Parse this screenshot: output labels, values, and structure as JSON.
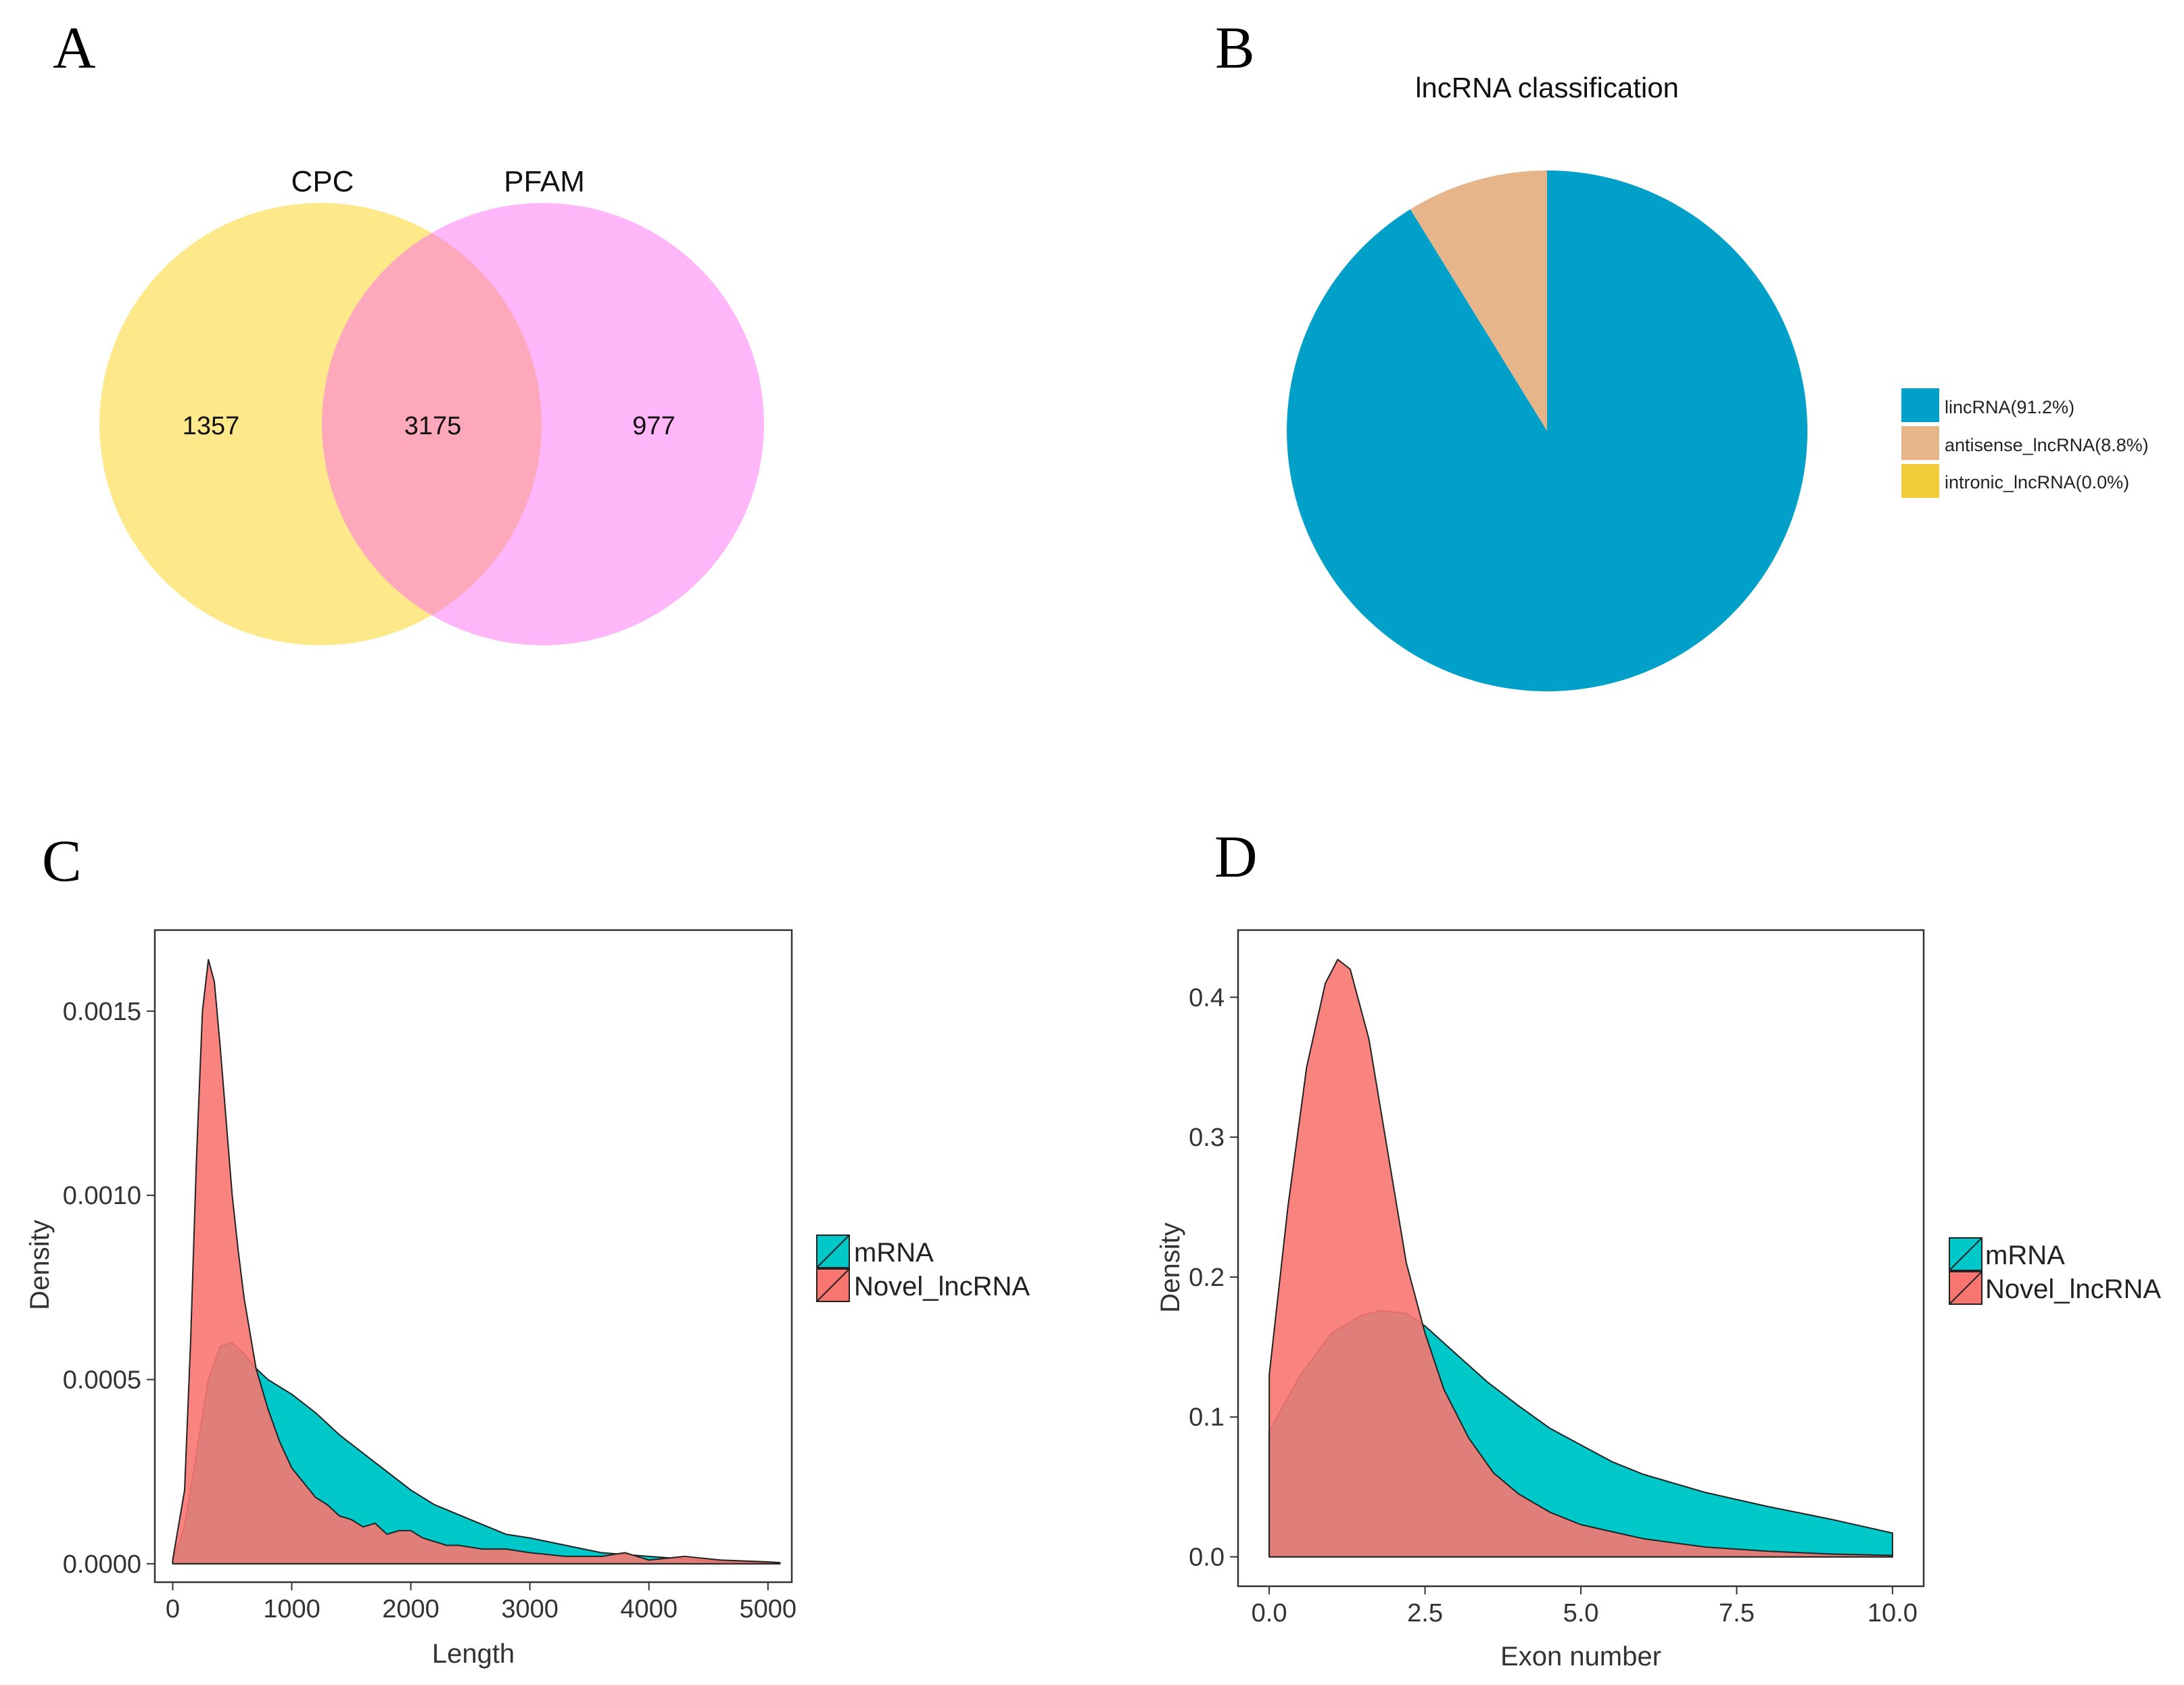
{
  "panels": {
    "A": {
      "letter": "A"
    },
    "B": {
      "letter": "B"
    },
    "C": {
      "letter": "C"
    },
    "D": {
      "letter": "D"
    }
  },
  "colors": {
    "cpc": "#FDE98A",
    "pfam": "#FFB7FA",
    "overlap": "#FDA9BB",
    "lincrna": "#00A0C8",
    "antisense": "#E7B58A",
    "intronic": "#F2CC3A",
    "mrna": "#00C8C8",
    "lncrna": "#F87570"
  },
  "chart_data": [
    {
      "type": "venn",
      "panel": "A",
      "sets": [
        "CPC",
        "PFAM"
      ],
      "regions": {
        "CPC_only": "1357",
        "both": "3175",
        "PFAM_only": "977"
      }
    },
    {
      "type": "pie",
      "panel": "B",
      "title": "lncRNA classification",
      "labels": [
        "lincRNA(91.2%)",
        "antisense_lncRNA(8.8%)",
        "intronic_lncRNA(0.0%)"
      ],
      "values": [
        91.2,
        8.8,
        0.0
      ],
      "legend_position": "right"
    },
    {
      "type": "area",
      "panel": "C",
      "xlabel": "Length",
      "ylabel": "Density",
      "xlim": [
        -150,
        5200
      ],
      "ylim": [
        -5e-05,
        0.00172
      ],
      "xticks": [
        0,
        1000,
        2000,
        3000,
        4000,
        5000
      ],
      "xtick_labels": [
        "0",
        "1000",
        "2000",
        "3000",
        "4000",
        "5000"
      ],
      "yticks": [
        0,
        0.0005,
        0.001,
        0.0015
      ],
      "ytick_labels": [
        "0.0000",
        "0.0005",
        "0.0010",
        "0.0015"
      ],
      "legend": [
        "mRNA",
        "Novel_lncRNA"
      ],
      "legend_position": "right",
      "series": [
        {
          "name": "mRNA",
          "x": [
            0,
            100,
            200,
            300,
            400,
            500,
            600,
            700,
            800,
            1000,
            1200,
            1400,
            1600,
            1800,
            2000,
            2200,
            2500,
            2800,
            3000,
            3300,
            3600,
            4000,
            4500,
            5000,
            5100
          ],
          "y": [
            1e-05,
            0.0001,
            0.0003,
            0.0005,
            0.00059,
            0.0006,
            0.00057,
            0.00053,
            0.0005,
            0.00046,
            0.00041,
            0.00035,
            0.0003,
            0.00025,
            0.0002,
            0.00016,
            0.00012,
            8e-05,
            7e-05,
            5e-05,
            3e-05,
            2e-05,
            8e-06,
            3e-06,
            2e-06
          ]
        },
        {
          "name": "Novel_lncRNA",
          "x": [
            0,
            100,
            150,
            200,
            250,
            300,
            350,
            400,
            450,
            500,
            550,
            600,
            700,
            800,
            900,
            1000,
            1100,
            1200,
            1300,
            1400,
            1500,
            1600,
            1700,
            1800,
            1900,
            2000,
            2100,
            2200,
            2300,
            2400,
            2600,
            2800,
            3000,
            3300,
            3600,
            3800,
            4000,
            4300,
            4600,
            5000,
            5100
          ],
          "y": [
            1e-05,
            0.0002,
            0.0006,
            0.0011,
            0.0015,
            0.00164,
            0.00158,
            0.0014,
            0.0012,
            0.001,
            0.00085,
            0.00072,
            0.00053,
            0.00042,
            0.00033,
            0.00026,
            0.00022,
            0.00018,
            0.00016,
            0.00013,
            0.00012,
            0.0001,
            0.00011,
            8e-05,
            9e-05,
            9e-05,
            7e-05,
            6e-05,
            5e-05,
            5e-05,
            4e-05,
            4e-05,
            3e-05,
            2e-05,
            2e-05,
            3e-05,
            1e-05,
            2e-05,
            1e-05,
            5e-06,
            3e-06
          ]
        }
      ]
    },
    {
      "type": "area",
      "panel": "D",
      "xlabel": "Exon number",
      "ylabel": "Density",
      "xlim": [
        -0.5,
        10.5
      ],
      "ylim": [
        -0.021,
        0.448
      ],
      "xticks": [
        0,
        2.5,
        5,
        7.5,
        10
      ],
      "xtick_labels": [
        "0.0",
        "2.5",
        "5.0",
        "7.5",
        "10.0"
      ],
      "yticks": [
        0,
        0.1,
        0.2,
        0.3,
        0.4
      ],
      "ytick_labels": [
        "0.0",
        "0.1",
        "0.2",
        "0.3",
        "0.4"
      ],
      "legend": [
        "mRNA",
        "Novel_lncRNA"
      ],
      "legend_position": "right",
      "series": [
        {
          "name": "mRNA",
          "x": [
            0,
            0.5,
            1,
            1.5,
            1.8,
            2.2,
            2.5,
            3,
            3.5,
            4,
            4.5,
            5,
            5.5,
            6,
            7,
            8,
            9,
            10
          ],
          "y": [
            0.09,
            0.13,
            0.16,
            0.173,
            0.176,
            0.174,
            0.165,
            0.145,
            0.125,
            0.108,
            0.092,
            0.08,
            0.068,
            0.059,
            0.046,
            0.036,
            0.027,
            0.017
          ]
        },
        {
          "name": "Novel_lncRNA",
          "x": [
            0,
            0.3,
            0.6,
            0.9,
            1.1,
            1.3,
            1.6,
            1.9,
            2.2,
            2.5,
            2.8,
            3.2,
            3.6,
            4,
            4.5,
            5,
            6,
            7,
            8,
            9,
            10
          ],
          "y": [
            0.13,
            0.25,
            0.35,
            0.41,
            0.427,
            0.42,
            0.37,
            0.29,
            0.21,
            0.16,
            0.12,
            0.085,
            0.06,
            0.045,
            0.032,
            0.023,
            0.013,
            0.007,
            0.004,
            0.002,
            0.001
          ]
        }
      ]
    }
  ]
}
